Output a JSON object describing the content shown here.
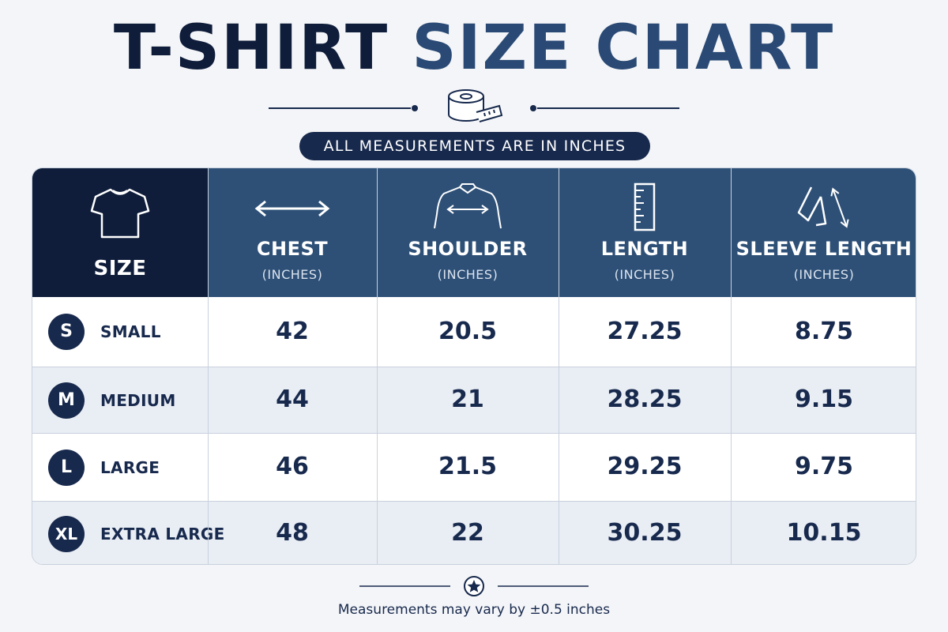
{
  "title": {
    "part1": "T-SHIRT",
    "part2": "SIZE CHART"
  },
  "subtitle": "ALL MEASUREMENTS ARE IN INCHES",
  "columns": [
    {
      "key": "size",
      "label": "SIZE",
      "unit": "",
      "icon": "tshirt-icon"
    },
    {
      "key": "chest",
      "label": "CHEST",
      "unit": "(INCHES)",
      "icon": "double-arrow-icon"
    },
    {
      "key": "shoulder",
      "label": "SHOULDER",
      "unit": "(INCHES)",
      "icon": "shoulder-icon"
    },
    {
      "key": "length",
      "label": "LENGTH",
      "unit": "(INCHES)",
      "icon": "ruler-icon"
    },
    {
      "key": "sleeve",
      "label": "SLEEVE LENGTH",
      "unit": "(INCHES)",
      "icon": "sleeve-icon"
    }
  ],
  "rows": [
    {
      "code": "S",
      "name": "SMALL",
      "chest": "42",
      "shoulder": "20.5",
      "length": "27.25",
      "sleeve": "8.75"
    },
    {
      "code": "M",
      "name": "MEDIUM",
      "chest": "44",
      "shoulder": "21",
      "length": "28.25",
      "sleeve": "9.15"
    },
    {
      "code": "L",
      "name": "LARGE",
      "chest": "46",
      "shoulder": "21.5",
      "length": "29.25",
      "sleeve": "9.75"
    },
    {
      "code": "XL",
      "name": "EXTRA LARGE",
      "chest": "48",
      "shoulder": "22",
      "length": "30.25",
      "sleeve": "10.15"
    }
  ],
  "footnote": "Measurements may vary by ±0.5 inches",
  "colors": {
    "navy": "#0f1d3a",
    "header_blue": "#2e5077",
    "accent": "#2a4a75",
    "row_alt": "#e9edf4"
  },
  "icons": {
    "top_divider": "measuring-tape-icon",
    "bottom_divider": "star-icon"
  }
}
